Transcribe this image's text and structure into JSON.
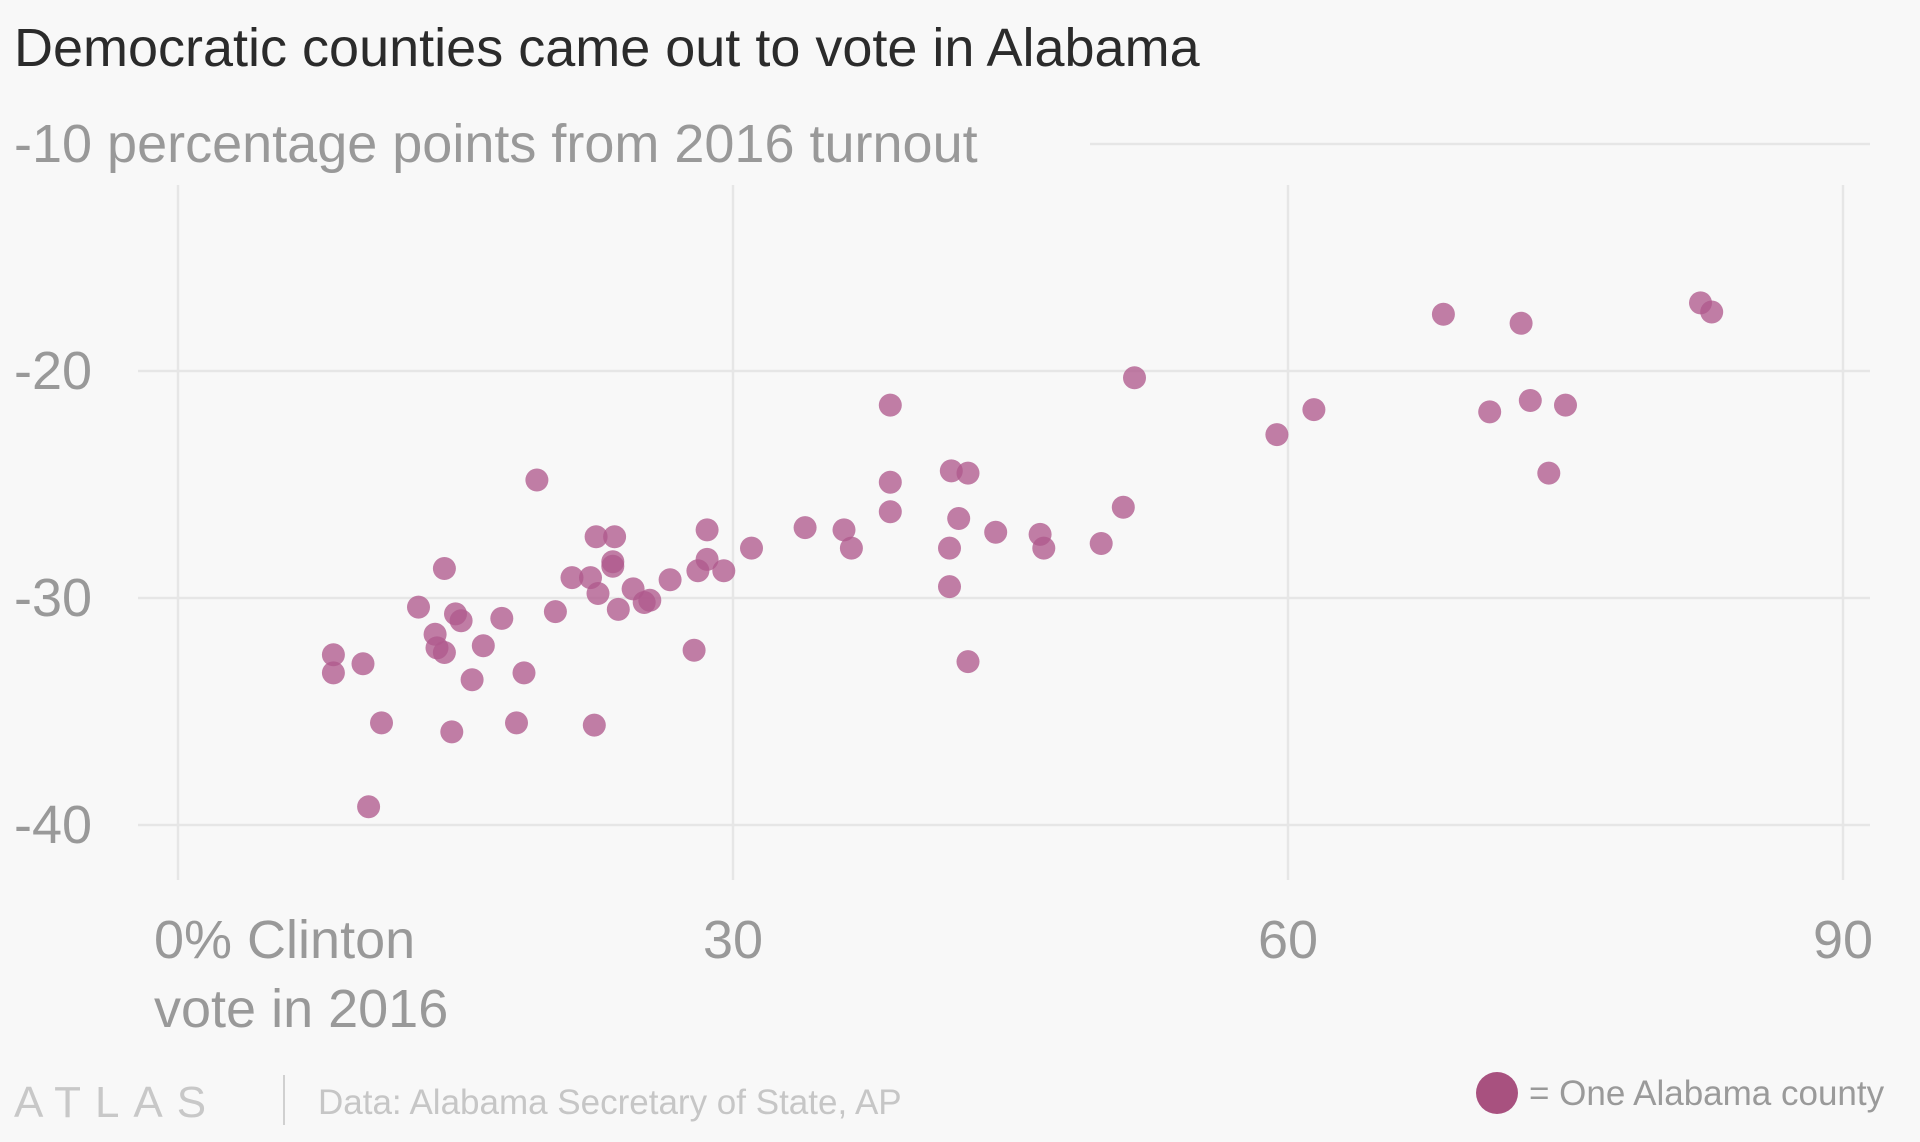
{
  "chart_data": {
    "type": "scatter",
    "title": "Democratic counties came out to vote in Alabama",
    "xlabel": "0% Clinton vote in 2016",
    "ylabel": "-10 percentage points from 2016 turnout",
    "xlim": [
      -5,
      93
    ],
    "ylim": [
      -44,
      -8
    ],
    "x_ticks": [
      0,
      30,
      60,
      90
    ],
    "x_tick_labels": [
      "0% Clinton",
      "30",
      "60",
      "90"
    ],
    "x_label_line2": "vote in 2016",
    "y_ticks": [
      -10,
      -20,
      -30,
      -40
    ],
    "y_tick_labels": [
      "-10 percentage points from 2016 turnout",
      "-20",
      "-30",
      "-40"
    ],
    "grid": true,
    "marker_color": "#b05a8d",
    "series": [
      {
        "points": [
          [
            8.4,
            -32.5
          ],
          [
            8.4,
            -33.3
          ],
          [
            10.0,
            -32.9
          ],
          [
            10.3,
            -39.2
          ],
          [
            11.0,
            -35.5
          ],
          [
            13.0,
            -30.4
          ],
          [
            13.9,
            -31.6
          ],
          [
            14.0,
            -32.2
          ],
          [
            14.4,
            -28.7
          ],
          [
            14.4,
            -32.4
          ],
          [
            14.8,
            -35.9
          ],
          [
            15.0,
            -30.7
          ],
          [
            15.3,
            -31.0
          ],
          [
            15.9,
            -33.6
          ],
          [
            16.5,
            -32.1
          ],
          [
            17.5,
            -30.9
          ],
          [
            18.3,
            -35.5
          ],
          [
            18.7,
            -33.3
          ],
          [
            19.4,
            -24.8
          ],
          [
            20.4,
            -30.6
          ],
          [
            21.3,
            -29.1
          ],
          [
            22.3,
            -29.1
          ],
          [
            22.5,
            -35.6
          ],
          [
            22.6,
            -27.3
          ],
          [
            22.7,
            -29.8
          ],
          [
            23.5,
            -28.4
          ],
          [
            23.5,
            -28.6
          ],
          [
            23.6,
            -27.3
          ],
          [
            23.8,
            -30.5
          ],
          [
            24.6,
            -29.6
          ],
          [
            25.2,
            -30.2
          ],
          [
            25.5,
            -30.1
          ],
          [
            26.6,
            -29.2
          ],
          [
            27.9,
            -32.3
          ],
          [
            28.1,
            -28.8
          ],
          [
            28.6,
            -27.0
          ],
          [
            28.6,
            -28.3
          ],
          [
            29.5,
            -28.8
          ],
          [
            31.0,
            -27.8
          ],
          [
            33.9,
            -26.9
          ],
          [
            36.0,
            -27.0
          ],
          [
            36.4,
            -27.8
          ],
          [
            38.5,
            -21.5
          ],
          [
            38.5,
            -24.9
          ],
          [
            38.5,
            -26.2
          ],
          [
            41.7,
            -29.5
          ],
          [
            41.7,
            -27.8
          ],
          [
            41.8,
            -24.4
          ],
          [
            42.2,
            -26.5
          ],
          [
            42.7,
            -24.5
          ],
          [
            42.7,
            -32.8
          ],
          [
            44.2,
            -27.1
          ],
          [
            46.6,
            -27.2
          ],
          [
            46.8,
            -27.8
          ],
          [
            49.9,
            -27.6
          ],
          [
            51.1,
            -26.0
          ],
          [
            51.7,
            -20.3
          ],
          [
            59.4,
            -22.8
          ],
          [
            61.4,
            -21.7
          ],
          [
            68.4,
            -17.5
          ],
          [
            70.9,
            -21.8
          ],
          [
            72.6,
            -17.9
          ],
          [
            73.1,
            -21.3
          ],
          [
            74.1,
            -24.5
          ],
          [
            75.0,
            -21.5
          ],
          [
            82.3,
            -17.0
          ],
          [
            82.9,
            -17.4
          ]
        ]
      }
    ],
    "legend": "= One Alabama county"
  },
  "footer": {
    "brand": "ATLAS",
    "source": "Data: Alabama Secretary of State, AP"
  }
}
